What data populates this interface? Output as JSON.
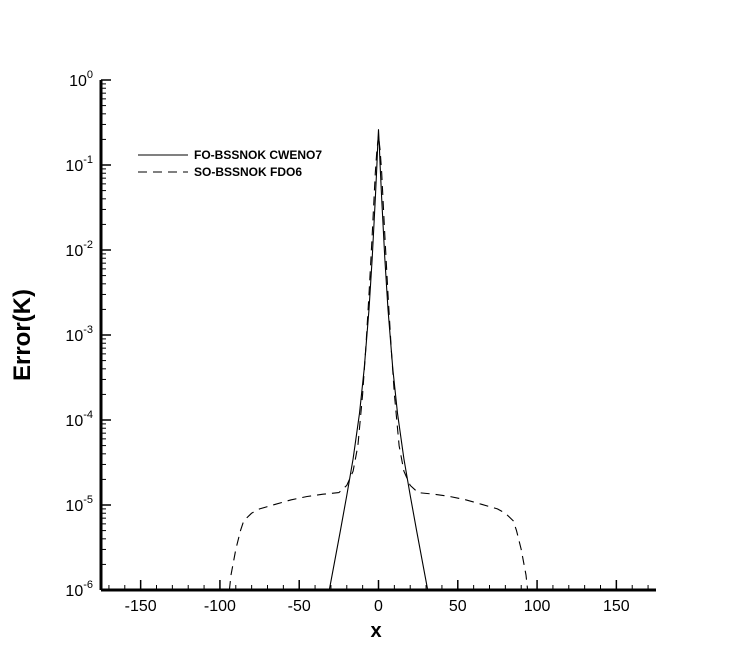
{
  "chart_data": {
    "type": "line",
    "title": "",
    "xlabel": "x",
    "ylabel": "Error(K)",
    "xlim": [
      -175,
      175
    ],
    "ylim": [
      1e-06,
      1
    ],
    "yscale": "log",
    "grid": false,
    "legend_position": "top-left",
    "x_ticks": [
      "-150",
      "-100",
      "-50",
      "0",
      "50",
      "100",
      "150"
    ],
    "y_ticks": [
      {
        "base": "10",
        "exp": "-6"
      },
      {
        "base": "10",
        "exp": "-5"
      },
      {
        "base": "10",
        "exp": "-4"
      },
      {
        "base": "10",
        "exp": "-3"
      },
      {
        "base": "10",
        "exp": "-2"
      },
      {
        "base": "10",
        "exp": "-1"
      },
      {
        "base": "10",
        "exp": "0"
      }
    ],
    "series": [
      {
        "name": "FO-BSSNOK CWENO7",
        "style": "solid",
        "color": "#000000",
        "x": [
          -31,
          -28,
          -24,
          -20,
          -16,
          -12,
          -9,
          -6,
          -4,
          -2,
          -1,
          -0.5,
          0,
          0.5,
          1,
          2,
          4,
          6,
          9,
          12,
          16,
          20,
          24,
          28,
          31
        ],
        "y": [
          1e-06,
          2e-06,
          5e-06,
          1.3e-05,
          3.5e-05,
          0.00012,
          0.0004,
          0.002,
          0.008,
          0.04,
          0.1,
          0.17,
          0.26,
          0.17,
          0.1,
          0.04,
          0.008,
          0.002,
          0.0004,
          0.00012,
          3.5e-05,
          1.3e-05,
          5e-06,
          2e-06,
          1e-06
        ]
      },
      {
        "name": "SO-BSSNOK FDO6",
        "style": "dashed",
        "color": "#000000",
        "x": [
          -94,
          -93,
          -90,
          -87,
          -85,
          -80,
          -75,
          -65,
          -55,
          -45,
          -35,
          -25,
          -20,
          -16,
          -13,
          -10,
          -8,
          -6,
          -4,
          -2,
          -1,
          0,
          1,
          2,
          4,
          6,
          8,
          10,
          13,
          16,
          20,
          25,
          35,
          45,
          55,
          65,
          75,
          80,
          85,
          87,
          90,
          93,
          94
        ],
        "y": [
          1e-06,
          1.5e-06,
          3e-06,
          5e-06,
          6.5e-06,
          8e-06,
          9e-06,
          1.02e-05,
          1.15e-05,
          1.26e-05,
          1.34e-05,
          1.4e-05,
          1.7e-05,
          2.5e-05,
          5e-05,
          0.0002,
          0.0007,
          0.003,
          0.015,
          0.08,
          0.15,
          0.22,
          0.15,
          0.08,
          0.015,
          0.003,
          0.0007,
          0.0002,
          5e-05,
          2.5e-05,
          1.7e-05,
          1.4e-05,
          1.34e-05,
          1.26e-05,
          1.15e-05,
          1.02e-05,
          9e-06,
          8e-06,
          6.5e-06,
          5e-06,
          3e-06,
          1.5e-06,
          1e-06
        ]
      }
    ]
  }
}
